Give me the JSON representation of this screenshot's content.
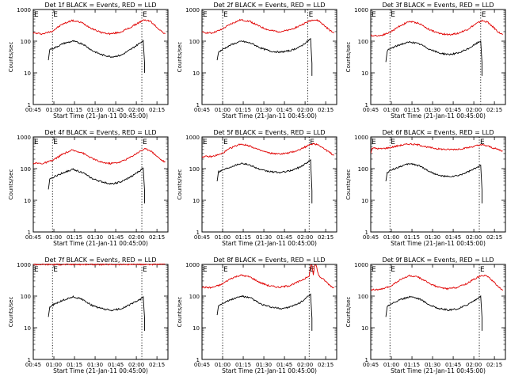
{
  "chart_data": [
    {
      "type": "line",
      "title": "Det 1f BLACK = Events, RED = LLD",
      "ylabel": "Counts/sec",
      "xlabel": "Start Time (21-Jan-11 00:45:00)",
      "yscale": "log",
      "ylim": [
        1,
        1000
      ],
      "xlim": [
        "00:45",
        "02:23"
      ],
      "y_ticks": [
        "1",
        "10",
        "100",
        "1000"
      ],
      "x_ticks": [
        "00:45",
        "01:00",
        "01:15",
        "01:30",
        "01:45",
        "02:00",
        "02:15"
      ],
      "markers": [
        "00:59",
        "02:04"
      ],
      "marker_letters": [
        "E",
        "E"
      ],
      "series": [
        {
          "color": "#e00000",
          "x": [
            "00:45",
            "00:52",
            "00:59",
            "01:06",
            "01:13",
            "01:20",
            "01:27",
            "01:34",
            "01:41",
            "01:48",
            "01:55",
            "02:02",
            "02:06",
            "02:10",
            "02:14",
            "02:18",
            "02:21"
          ],
          "values": [
            180,
            170,
            210,
            340,
            450,
            390,
            260,
            190,
            170,
            190,
            260,
            390,
            470,
            430,
            300,
            210,
            170
          ]
        },
        {
          "color": "#000000",
          "x": [
            "00:56",
            "00:57",
            "01:00",
            "01:07",
            "01:14",
            "01:21",
            "01:28",
            "01:35",
            "01:42",
            "01:49",
            "01:56",
            "02:03",
            "02:05",
            "02:06",
            "02:06"
          ],
          "values": [
            25,
            55,
            60,
            85,
            100,
            82,
            50,
            37,
            32,
            36,
            55,
            90,
            105,
            20,
            10
          ]
        }
      ]
    },
    {
      "type": "line",
      "title": "Det 2f BLACK = Events, RED = LLD",
      "ylabel": "Counts/sec",
      "xlabel": "Start Time (21-Jan-11 00:45:00)",
      "yscale": "log",
      "ylim": [
        1,
        1000
      ],
      "xlim": [
        "00:45",
        "02:23"
      ],
      "y_ticks": [
        "1",
        "10",
        "100",
        "1000"
      ],
      "x_ticks": [
        "00:45",
        "01:00",
        "01:15",
        "01:30",
        "01:45",
        "02:00",
        "02:15"
      ],
      "markers": [
        "01:00",
        "02:02"
      ],
      "marker_letters": [
        "E",
        "E"
      ],
      "series": [
        {
          "color": "#e00000",
          "x": [
            "00:45",
            "00:52",
            "00:59",
            "01:06",
            "01:13",
            "01:20",
            "01:27",
            "01:34",
            "01:41",
            "01:48",
            "01:55",
            "02:02",
            "02:06",
            "02:10",
            "02:14",
            "02:18",
            "02:21"
          ],
          "values": [
            190,
            180,
            230,
            350,
            470,
            420,
            290,
            220,
            200,
            220,
            290,
            410,
            480,
            440,
            310,
            220,
            180
          ]
        },
        {
          "color": "#000000",
          "x": [
            "00:56",
            "00:57",
            "01:00",
            "01:07",
            "01:14",
            "01:21",
            "01:28",
            "01:35",
            "01:42",
            "01:49",
            "01:56",
            "02:02",
            "02:04",
            "02:05",
            "02:05"
          ],
          "values": [
            25,
            45,
            55,
            80,
            100,
            85,
            60,
            48,
            45,
            50,
            65,
            100,
            120,
            20,
            8
          ]
        }
      ]
    },
    {
      "type": "line",
      "title": "Det 3f BLACK = Events, RED = LLD",
      "ylabel": "Counts/sec",
      "xlabel": "Start Time (21-Jan-11 00:45:00)",
      "yscale": "log",
      "ylim": [
        1,
        1000
      ],
      "xlim": [
        "00:45",
        "02:23"
      ],
      "y_ticks": [
        "1",
        "10",
        "100",
        "1000"
      ],
      "x_ticks": [
        "00:45",
        "01:00",
        "01:15",
        "01:30",
        "01:45",
        "02:00",
        "02:15"
      ],
      "markers": [
        "00:59",
        "02:05"
      ],
      "marker_letters": [
        "E",
        "E"
      ],
      "series": [
        {
          "color": "#e00000",
          "x": [
            "00:45",
            "00:52",
            "00:59",
            "01:06",
            "01:13",
            "01:20",
            "01:27",
            "01:34",
            "01:41",
            "01:48",
            "01:55",
            "02:02",
            "02:06",
            "02:10",
            "02:14",
            "02:18",
            "02:21"
          ],
          "values": [
            150,
            150,
            190,
            300,
            420,
            370,
            240,
            180,
            160,
            175,
            230,
            360,
            440,
            400,
            280,
            190,
            160
          ]
        },
        {
          "color": "#000000",
          "x": [
            "00:56",
            "00:57",
            "01:00",
            "01:07",
            "01:14",
            "01:21",
            "01:28",
            "01:35",
            "01:42",
            "01:49",
            "01:56",
            "02:03",
            "02:05",
            "02:06",
            "02:06"
          ],
          "values": [
            22,
            50,
            60,
            80,
            95,
            80,
            55,
            42,
            38,
            42,
            58,
            90,
            100,
            20,
            8
          ]
        }
      ]
    },
    {
      "type": "line",
      "title": "Det 4f BLACK = Events, RED = LLD",
      "ylabel": "Counts/sec",
      "xlabel": "Start Time (21-Jan-11 00:45:00)",
      "yscale": "log",
      "ylim": [
        1,
        1000
      ],
      "xlim": [
        "00:45",
        "02:23"
      ],
      "y_ticks": [
        "1",
        "10",
        "100",
        "1000"
      ],
      "x_ticks": [
        "00:45",
        "01:00",
        "01:15",
        "01:30",
        "01:45",
        "02:00",
        "02:15"
      ],
      "markers": [
        "00:59",
        "02:04"
      ],
      "marker_letters": [
        "E",
        "E"
      ],
      "series": [
        {
          "color": "#e00000",
          "x": [
            "00:45",
            "00:52",
            "00:59",
            "01:06",
            "01:13",
            "01:20",
            "01:27",
            "01:34",
            "01:41",
            "01:48",
            "01:55",
            "02:02",
            "02:06",
            "02:10",
            "02:14",
            "02:18",
            "02:21"
          ],
          "values": [
            150,
            145,
            180,
            280,
            380,
            330,
            220,
            160,
            145,
            160,
            220,
            340,
            420,
            380,
            270,
            190,
            160
          ]
        },
        {
          "color": "#000000",
          "x": [
            "00:56",
            "00:57",
            "01:00",
            "01:07",
            "01:14",
            "01:21",
            "01:28",
            "01:35",
            "01:42",
            "01:49",
            "01:56",
            "02:03",
            "02:05",
            "02:06",
            "02:06"
          ],
          "values": [
            22,
            45,
            55,
            75,
            95,
            75,
            48,
            38,
            33,
            38,
            55,
            88,
            105,
            20,
            8
          ]
        }
      ]
    },
    {
      "type": "line",
      "title": "Det 5f BLACK = Events, RED = LLD",
      "ylabel": "Counts/sec",
      "xlabel": "Start Time (21-Jan-11 00:45:00)",
      "yscale": "log",
      "ylim": [
        1,
        1000
      ],
      "xlim": [
        "00:45",
        "02:23"
      ],
      "y_ticks": [
        "1",
        "10",
        "100",
        "1000"
      ],
      "x_ticks": [
        "00:45",
        "01:00",
        "01:15",
        "01:30",
        "01:45",
        "02:00",
        "02:15"
      ],
      "markers": [
        "01:00",
        "02:03"
      ],
      "marker_letters": [
        "E",
        "E"
      ],
      "series": [
        {
          "color": "#e00000",
          "x": [
            "00:45",
            "00:52",
            "00:59",
            "01:06",
            "01:13",
            "01:20",
            "01:27",
            "01:34",
            "01:41",
            "01:48",
            "01:55",
            "02:02",
            "02:06",
            "02:10",
            "02:14",
            "02:18",
            "02:21"
          ],
          "values": [
            240,
            240,
            290,
            450,
            600,
            520,
            380,
            310,
            290,
            310,
            380,
            530,
            620,
            560,
            420,
            320,
            260
          ]
        },
        {
          "color": "#000000",
          "x": [
            "00:56",
            "00:57",
            "01:00",
            "01:07",
            "01:14",
            "01:21",
            "01:28",
            "01:35",
            "01:42",
            "01:49",
            "01:56",
            "02:02",
            "02:04",
            "02:05",
            "02:05"
          ],
          "values": [
            40,
            80,
            90,
            120,
            150,
            125,
            90,
            80,
            75,
            85,
            110,
            160,
            190,
            20,
            8
          ]
        }
      ]
    },
    {
      "type": "line",
      "title": "Det 6f BLACK = Events, RED = LLD",
      "ylabel": "Counts/sec",
      "xlabel": "Start Time (21-Jan-11 00:45:00)",
      "yscale": "log",
      "ylim": [
        1,
        1000
      ],
      "xlim": [
        "00:45",
        "02:23"
      ],
      "y_ticks": [
        "1",
        "10",
        "100",
        "1000"
      ],
      "x_ticks": [
        "00:45",
        "01:00",
        "01:15",
        "01:30",
        "01:45",
        "02:00",
        "02:15"
      ],
      "markers": [
        "00:59",
        "02:04"
      ],
      "marker_letters": [
        "E",
        "E"
      ],
      "series": [
        {
          "color": "#e00000",
          "x": [
            "00:45",
            "00:46",
            "00:52",
            "00:59",
            "01:06",
            "01:13",
            "01:20",
            "01:27",
            "01:34",
            "01:41",
            "01:48",
            "01:55",
            "02:02",
            "02:06",
            "02:10",
            "02:14",
            "02:18",
            "02:21"
          ],
          "values": [
            300,
            450,
            420,
            460,
            540,
            600,
            560,
            470,
            420,
            400,
            410,
            450,
            530,
            560,
            520,
            450,
            400,
            360
          ]
        },
        {
          "color": "#000000",
          "x": [
            "00:56",
            "00:57",
            "01:00",
            "01:07",
            "01:14",
            "01:21",
            "01:28",
            "01:35",
            "01:42",
            "01:49",
            "01:56",
            "02:03",
            "02:05",
            "02:06",
            "02:06"
          ],
          "values": [
            40,
            75,
            90,
            120,
            145,
            120,
            80,
            60,
            55,
            60,
            80,
            110,
            130,
            20,
            8
          ]
        }
      ]
    },
    {
      "type": "line",
      "title": "Det 7f BLACK = Events, RED = LLD",
      "ylabel": "Counts/sec",
      "xlabel": "Start Time (21-Jan-11 00:45:00)",
      "yscale": "log",
      "ylim": [
        1,
        1000
      ],
      "xlim": [
        "00:45",
        "02:23"
      ],
      "y_ticks": [
        "1",
        "10",
        "100",
        "1000"
      ],
      "x_ticks": [
        "00:45",
        "01:00",
        "01:15",
        "01:30",
        "01:45",
        "02:00",
        "02:15"
      ],
      "markers": [
        "00:59",
        "02:04"
      ],
      "marker_letters": [
        "E",
        "E"
      ],
      "series": [
        {
          "color": "#e00000",
          "x": [
            "00:45",
            "00:52",
            "00:59",
            "01:06",
            "01:13",
            "01:20",
            "01:27",
            "01:34",
            "01:41",
            "01:48",
            "01:55",
            "02:02",
            "02:06",
            "02:10",
            "02:14",
            "02:18",
            "02:21"
          ],
          "values": [
            1000,
            1000,
            1000,
            1000,
            1000,
            1000,
            1000,
            1000,
            1000,
            1000,
            1000,
            1000,
            1000,
            1000,
            1000,
            1000,
            1000
          ]
        },
        {
          "color": "#000000",
          "x": [
            "00:56",
            "00:57",
            "01:00",
            "01:07",
            "01:14",
            "01:21",
            "01:28",
            "01:35",
            "01:42",
            "01:49",
            "01:56",
            "02:03",
            "02:05",
            "02:06",
            "02:06"
          ],
          "values": [
            22,
            45,
            55,
            75,
            95,
            78,
            50,
            40,
            35,
            40,
            55,
            80,
            95,
            20,
            8
          ]
        }
      ]
    },
    {
      "type": "line",
      "title": "Det 8f BLACK = Events, RED = LLD",
      "ylabel": "Counts/sec",
      "xlabel": "Start Time (21-Jan-11 00:45:00)",
      "yscale": "log",
      "ylim": [
        1,
        1000
      ],
      "xlim": [
        "00:45",
        "02:23"
      ],
      "y_ticks": [
        "1",
        "10",
        "100",
        "1000"
      ],
      "x_ticks": [
        "00:45",
        "01:00",
        "01:15",
        "01:30",
        "01:45",
        "02:00",
        "02:15"
      ],
      "markers": [
        "01:00",
        "02:03"
      ],
      "marker_letters": [
        "E",
        "E"
      ],
      "series": [
        {
          "color": "#e00000",
          "x": [
            "00:45",
            "00:52",
            "00:59",
            "01:06",
            "01:13",
            "01:20",
            "01:27",
            "01:34",
            "01:41",
            "01:48",
            "01:55",
            "02:02",
            "02:03",
            "02:04",
            "02:05",
            "02:06",
            "02:07",
            "02:08",
            "02:10",
            "02:14",
            "02:18",
            "02:21"
          ],
          "values": [
            190,
            185,
            230,
            360,
            460,
            400,
            270,
            210,
            190,
            210,
            280,
            400,
            420,
            950,
            950,
            460,
            950,
            950,
            430,
            320,
            220,
            180
          ]
        },
        {
          "color": "#000000",
          "x": [
            "00:56",
            "00:57",
            "01:00",
            "01:07",
            "01:14",
            "01:21",
            "01:28",
            "01:35",
            "01:42",
            "01:49",
            "01:56",
            "02:02",
            "02:04",
            "02:05",
            "02:05"
          ],
          "values": [
            25,
            50,
            60,
            80,
            100,
            85,
            55,
            45,
            40,
            45,
            60,
            95,
            115,
            20,
            8
          ]
        }
      ]
    },
    {
      "type": "line",
      "title": "Det 9f BLACK = Events, RED = LLD",
      "ylabel": "Counts/sec",
      "xlabel": "Start Time (21-Jan-11 00:45:00)",
      "yscale": "log",
      "ylim": [
        1,
        1000
      ],
      "xlim": [
        "00:45",
        "02:23"
      ],
      "y_ticks": [
        "1",
        "10",
        "100",
        "1000"
      ],
      "x_ticks": [
        "00:45",
        "01:00",
        "01:15",
        "01:30",
        "01:45",
        "02:00",
        "02:15"
      ],
      "markers": [
        "00:59",
        "02:04"
      ],
      "marker_letters": [
        "E",
        "E"
      ],
      "series": [
        {
          "color": "#e00000",
          "x": [
            "00:45",
            "00:52",
            "00:59",
            "01:06",
            "01:13",
            "01:20",
            "01:27",
            "01:34",
            "01:41",
            "01:48",
            "01:55",
            "02:02",
            "02:06",
            "02:10",
            "02:14",
            "02:18",
            "02:21"
          ],
          "values": [
            160,
            160,
            200,
            320,
            440,
            390,
            260,
            190,
            170,
            190,
            250,
            380,
            460,
            420,
            290,
            200,
            150
          ]
        },
        {
          "color": "#000000",
          "x": [
            "00:56",
            "00:57",
            "01:00",
            "01:07",
            "01:14",
            "01:21",
            "01:28",
            "01:35",
            "01:42",
            "01:49",
            "01:56",
            "02:03",
            "02:05",
            "02:06",
            "02:06"
          ],
          "values": [
            22,
            48,
            58,
            78,
            98,
            80,
            52,
            40,
            36,
            40,
            56,
            85,
            100,
            20,
            8
          ]
        }
      ]
    }
  ]
}
